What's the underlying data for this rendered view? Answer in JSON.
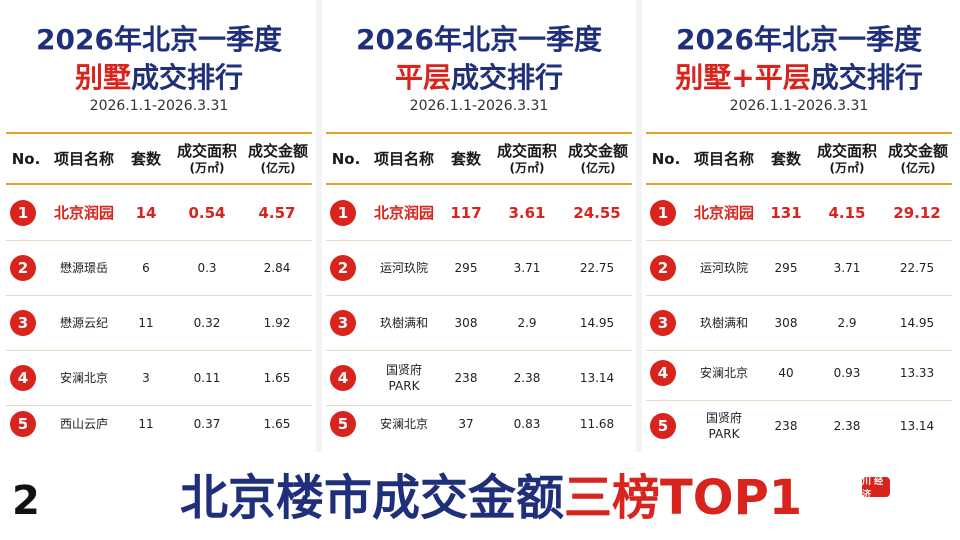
{
  "panels": [
    {
      "title_line1": "2026年北京一季度",
      "title_red": "别墅",
      "title_rest": "成交排行",
      "date_range": "2026.1.1-2026.3.31",
      "headers": {
        "no": "No.",
        "name": "项目名称",
        "units": "套数",
        "area_l1": "成交面积",
        "area_l2": "(万㎡)",
        "amount_l1": "成交金额",
        "amount_l2": "(亿元)"
      },
      "rows": [
        {
          "rank": "1",
          "name1": "北京润园",
          "name2": "",
          "units": "14",
          "area": "0.54",
          "amount": "4.57"
        },
        {
          "rank": "2",
          "name1": "懋源璟岳",
          "name2": "",
          "units": "6",
          "area": "0.3",
          "amount": "2.84"
        },
        {
          "rank": "3",
          "name1": "懋源云纪",
          "name2": "",
          "units": "11",
          "area": "0.32",
          "amount": "1.92"
        },
        {
          "rank": "4",
          "name1": "安澜北京",
          "name2": "",
          "units": "3",
          "area": "0.11",
          "amount": "1.65"
        },
        {
          "rank": "5",
          "name1": "西山云庐",
          "name2": "",
          "units": "11",
          "area": "0.37",
          "amount": "1.65"
        }
      ]
    },
    {
      "title_line1": "2026年北京一季度",
      "title_red": "平层",
      "title_rest": "成交排行",
      "date_range": "2026.1.1-2026.3.31",
      "headers": {
        "no": "No.",
        "name": "项目名称",
        "units": "套数",
        "area_l1": "成交面积",
        "area_l2": "(万㎡)",
        "amount_l1": "成交金额",
        "amount_l2": "(亿元)"
      },
      "rows": [
        {
          "rank": "1",
          "name1": "北京润园",
          "name2": "",
          "units": "117",
          "area": "3.61",
          "amount": "24.55"
        },
        {
          "rank": "2",
          "name1": "运河玖院",
          "name2": "",
          "units": "295",
          "area": "3.71",
          "amount": "22.75"
        },
        {
          "rank": "3",
          "name1": "玖樹满和",
          "name2": "",
          "units": "308",
          "area": "2.9",
          "amount": "14.95"
        },
        {
          "rank": "4",
          "name1": "国贤府",
          "name2": "PARK",
          "units": "238",
          "area": "2.38",
          "amount": "13.14"
        },
        {
          "rank": "5",
          "name1": "安澜北京",
          "name2": "",
          "units": "37",
          "area": "0.83",
          "amount": "11.68"
        }
      ]
    },
    {
      "title_line1": "2026年北京一季度",
      "title_red": "别墅+平层",
      "title_rest": "成交排行",
      "date_range": "2026.1.1-2026.3.31",
      "headers": {
        "no": "No.",
        "name": "项目名称",
        "units": "套数",
        "area_l1": "成交面积",
        "area_l2": "(万㎡)",
        "amount_l1": "成交金额",
        "amount_l2": "(亿元)"
      },
      "rows": [
        {
          "rank": "1",
          "name1": "北京润园",
          "name2": "",
          "units": "131",
          "area": "4.15",
          "amount": "29.12"
        },
        {
          "rank": "2",
          "name1": "运河玖院",
          "name2": "",
          "units": "295",
          "area": "3.71",
          "amount": "22.75"
        },
        {
          "rank": "3",
          "name1": "玖樹满和",
          "name2": "",
          "units": "308",
          "area": "2.9",
          "amount": "14.95"
        },
        {
          "rank": "4",
          "name1": "安澜北京",
          "name2": "",
          "units": "40",
          "area": "0.93",
          "amount": "13.33"
        },
        {
          "rank": "5",
          "name1": "国贤府",
          "name2": "PARK",
          "units": "238",
          "area": "2.38",
          "amount": "13.14"
        }
      ]
    }
  ],
  "footer": {
    "title_main": "北京楼市成交金额",
    "title_red": "三榜TOP1",
    "page_number": "2",
    "watermark": "川 经济"
  },
  "colors": {
    "navy": "#1f2f7a",
    "red": "#d9231d",
    "gold": "#e6a02a"
  }
}
